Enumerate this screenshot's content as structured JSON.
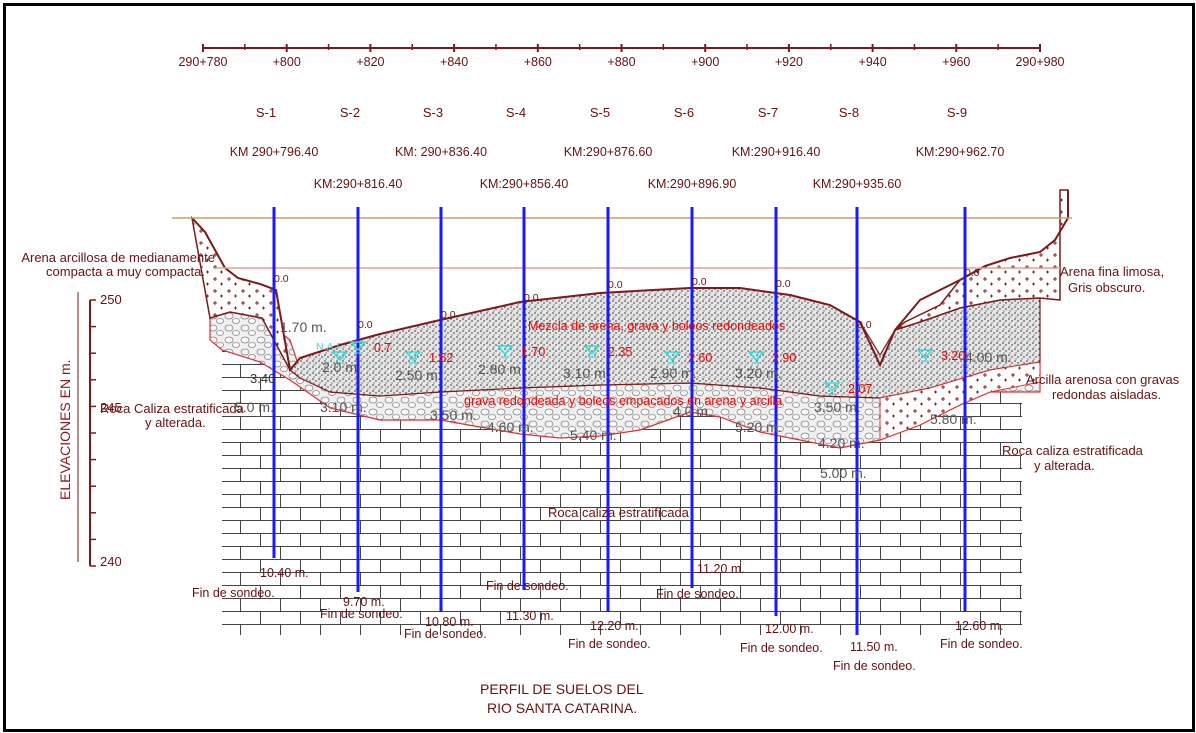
{
  "title": [
    "PERFIL DE SUELOS DEL",
    "RIO SANTA CATARINA."
  ],
  "chainage_ticks": [
    "290+780",
    "+800",
    "+820",
    "+840",
    "+860",
    "+880",
    "+900",
    "+920",
    "+940",
    "+960",
    "290+980"
  ],
  "elevation_axis": {
    "label": "ELEVACIONES EN m.",
    "ticks": [
      "250",
      "245",
      "240"
    ]
  },
  "soundings": [
    {
      "id": "S-1",
      "km": "KM 290+796.40",
      "surface": "0.0",
      "nap": "N.A.F.",
      "nap_depth": "3.40",
      "layer_depths": [
        "1.70 m.",
        "5.0 m."
      ],
      "end": "10.40 m.",
      "end_label": "Fin de sondeo."
    },
    {
      "id": "S-2",
      "km": "KM:290+816.40",
      "surface": "0.0",
      "nap_depth": "0.7",
      "layer_depths": [
        "2.0 m.",
        "3.10 m."
      ],
      "end": "9.70 m.",
      "end_label": "Fin de sondeo."
    },
    {
      "id": "S-3",
      "km": "KM: 290+836.40",
      "surface": "0.0",
      "nap_depth": "1.52",
      "layer_depths": [
        "2.50 m.",
        "3.50 m."
      ],
      "end": "10.80 m.",
      "end_label": "Fin de sondeo."
    },
    {
      "id": "S-4",
      "km": "KM:290+856.40",
      "surface": "0.0",
      "nap_depth": "1.70",
      "layer_depths": [
        "2.80 m.",
        "4.60 m."
      ],
      "end": "11.30 m.",
      "end_label": "Fin de sondeo."
    },
    {
      "id": "S-5",
      "km": "KM:290+876.60",
      "surface": "0.0",
      "nap_depth": "2.35",
      "layer_depths": [
        "3.10 m.",
        "5.40 m."
      ],
      "end": "12.20 m.",
      "end_label": "Fin de sondeo."
    },
    {
      "id": "S-6",
      "km": "KM:290+896.90",
      "surface": "0.0",
      "nap_depth": "2.60",
      "layer_depths": [
        "2.90 m.",
        "4.0 m."
      ],
      "end": "11.20 m.",
      "end_label": "Fin de sondeo."
    },
    {
      "id": "S-7",
      "km": "KM:290+916.40",
      "surface": "0.0",
      "nap_depth": "2.90",
      "layer_depths": [
        "3.20 m.",
        "5.20 m."
      ],
      "end": "12.00 m.",
      "end_label": "Fin de sondeo."
    },
    {
      "id": "S-8",
      "km": "KM:290+935.60",
      "surface": "0.0",
      "nap_depth": "2.07",
      "layer_depths": [
        "3.50 m.",
        "4.20 m.",
        "5.00 m."
      ],
      "end": "11.50 m.",
      "end_label": "Fin de sondeo."
    },
    {
      "id": "S-9",
      "km": "KM:290+962.70",
      "surface": "0.0",
      "nap_depth": "3.20",
      "layer_depths": [
        "4.00 m.",
        "5.80 m."
      ],
      "end": "12.60 m.",
      "end_label": "Fin de sondeo."
    }
  ],
  "layer_labels": {
    "arena_arcillosa": [
      "Arena arcillosa de medianamente",
      "compacta a muy compacta."
    ],
    "mezcla": "Mezcla de arena, grava y boleos redondeados",
    "grava": "grava redondeada y boleos empacados en arena y arcilla",
    "roca_caliza_left": [
      "Roca Caliza estratificada",
      "y alterada."
    ],
    "roca_estratificada": "Roca  caliza estratificada",
    "arena_fina": [
      "Arena fina limosa,",
      "Gris obscuro."
    ],
    "arcilla_arenosa": [
      "Arcilla arenosa con gravas",
      "redondas aisladas."
    ],
    "roca_caliza_right": [
      "Roca caliza estratificada",
      "y alterada."
    ]
  },
  "colors": {
    "sounding_line": "#1a1aff",
    "red_text": "#ff0000",
    "nap_cyan": "#33dddd",
    "brown_line": "#7a1a1a",
    "water_line": "#c8a060"
  }
}
